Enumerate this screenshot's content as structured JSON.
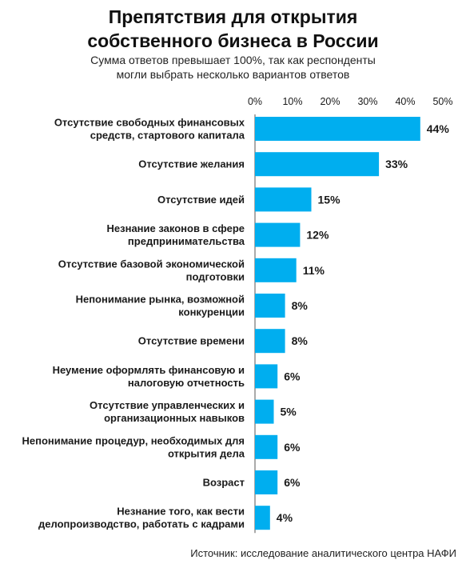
{
  "title_lines": [
    "Препятствия для открытия",
    "собственного бизнеса в России"
  ],
  "subtitle_lines": [
    "Сумма ответов превышает 100%, так как респонденты",
    "могли выбрать несколько вариантов ответов"
  ],
  "source": "Источник: исследование аналитического центра НАФИ",
  "colors": {
    "bar": "#00aeef",
    "text": "#1a1a1a"
  },
  "chart_data": {
    "type": "bar",
    "orientation": "horizontal",
    "title": "Препятствия для открытия собственного бизнеса в России",
    "subtitle": "Сумма ответов превышает 100%, так как респонденты могли выбрать несколько вариантов ответов",
    "xlim": [
      0,
      50
    ],
    "x_ticks": [
      "0%",
      "10%",
      "20%",
      "30%",
      "40%",
      "50%"
    ],
    "x_axis_position": "top",
    "grid": false,
    "categories": [
      [
        "Отсутствие свободных финансовых",
        "средств, стартового капитала"
      ],
      [
        "Отсутствие желания"
      ],
      [
        "Отсутствие идей"
      ],
      [
        "Незнание законов в сфере",
        "предпринимательства"
      ],
      [
        "Отсутствие базовой экономической",
        "подготовки"
      ],
      [
        "Непонимание рынка, возможной",
        "конкуренции"
      ],
      [
        "Отсутствие времени"
      ],
      [
        "Неумение оформлять финансовую и",
        "налоговую отчетность"
      ],
      [
        "Отсутствие управленческих и",
        "организационных навыков"
      ],
      [
        "Непонимание процедур, необходимых для",
        "открытия дела"
      ],
      [
        "Возраст"
      ],
      [
        "Незнание того, как вести",
        "делопроизводство, работать с кадрами"
      ]
    ],
    "values": [
      44,
      33,
      15,
      12,
      11,
      8,
      8,
      6,
      5,
      6,
      6,
      4
    ],
    "value_labels": [
      "44%",
      "33%",
      "15%",
      "12%",
      "11%",
      "8%",
      "8%",
      "6%",
      "5%",
      "6%",
      "6%",
      "4%"
    ]
  }
}
